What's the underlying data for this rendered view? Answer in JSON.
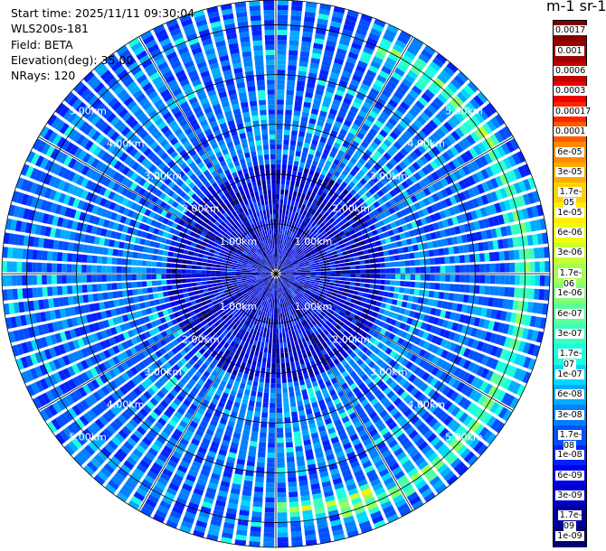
{
  "info": {
    "start_time": "Start time: 2025/11/11 09:30:04",
    "instrument": "WLS200s-181",
    "field": "Field: BETA",
    "elevation": "Elevation(deg): 35.00",
    "nrays": "NRays: 120"
  },
  "chart_data": {
    "type": "heatmap",
    "subtype": "polar-ppi",
    "title": "",
    "rays": 120,
    "range_rings_km": [
      1,
      2,
      3,
      4,
      5
    ],
    "ring_labels": [
      "1.00km",
      "2.00km",
      "3.00km",
      "4.00km",
      "5.00km"
    ],
    "max_range_km": 5.5,
    "colorbar": {
      "label": "m-1 sr-1",
      "ticks": [
        "0.0017",
        "0.001",
        "0.0006",
        "0.0003",
        "0.00017",
        "0.0001",
        "6e-05",
        "3e-05",
        "1.7e-05",
        "1e-05",
        "6e-06",
        "3e-06",
        "1.7e-06",
        "1e-06",
        "6e-07",
        "3e-07",
        "1.7e-07",
        "1e-07",
        "6e-08",
        "3e-08",
        "1.7e-08",
        "1e-08",
        "6e-09",
        "3e-09",
        "1.7e-09",
        "1e-09"
      ],
      "colors": [
        "#7f0000",
        "#9c0000",
        "#c40000",
        "#ee0000",
        "#ff2400",
        "#ff5a00",
        "#ff8a00",
        "#ffaa00",
        "#ffd000",
        "#ffee00",
        "#ecff12",
        "#c8ff30",
        "#a4ff52",
        "#80ff76",
        "#5cff9a",
        "#38ffbe",
        "#18ffe0",
        "#00d8ff",
        "#00acff",
        "#0080ff",
        "#0050ff",
        "#0022ff",
        "#0000f0",
        "#0000c8",
        "#00009c",
        "#000070"
      ]
    },
    "features": [
      {
        "desc": "enhanced backscatter arc",
        "azimuth_start_deg": 25,
        "azimuth_end_deg": 165,
        "range_km": 5.0,
        "level": "1.7e-06 to 1e-05"
      },
      {
        "desc": "enhanced backscatter patch",
        "azimuth_start_deg": 155,
        "azimuth_end_deg": 180,
        "range_km": 4.75,
        "level": "3e-06 to 1e-05"
      }
    ],
    "background_level": "3e-08 to 1e-07",
    "near_field_level": "1e-09 to 3e-08"
  }
}
